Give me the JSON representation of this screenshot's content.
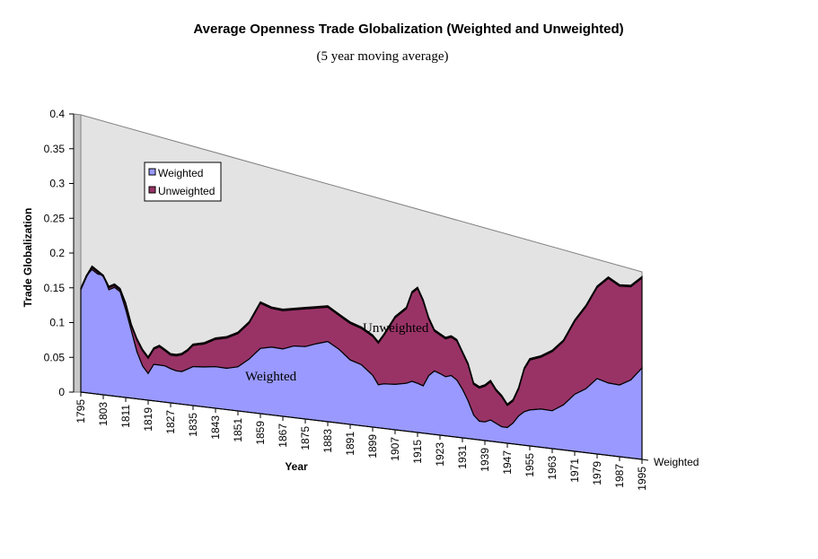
{
  "chart_data": {
    "type": "area",
    "title": "Average Openness Trade Globalization (Weighted and Unweighted)",
    "subtitle": "(5 year moving average)",
    "xlabel": "Year",
    "ylabel": "Trade Globalization",
    "ylim": [
      0,
      0.4
    ],
    "yticks": [
      "0",
      "0.05",
      "0.1",
      "0.15",
      "0.2",
      "0.25",
      "0.3",
      "0.35",
      "0.4"
    ],
    "xticks": [
      "1795",
      "1803",
      "1811",
      "1819",
      "1827",
      "1835",
      "1843",
      "1851",
      "1859",
      "1867",
      "1875",
      "1883",
      "1891",
      "1899",
      "1907",
      "1915",
      "1923",
      "1931",
      "1939",
      "1947",
      "1955",
      "1963",
      "1971",
      "1979",
      "1987",
      "1995"
    ],
    "depth_axis_label": "Weighted",
    "legend_position": "upper-left",
    "annotations": {
      "weighted": "Weighted",
      "unweighted": "Unweighted"
    },
    "colors": {
      "weighted": "#9999ff",
      "unweighted": "#993366",
      "wall": "#e3e3e3"
    },
    "x": [
      1795,
      1797,
      1799,
      1801,
      1803,
      1805,
      1807,
      1809,
      1811,
      1813,
      1815,
      1817,
      1819,
      1821,
      1823,
      1825,
      1827,
      1829,
      1831,
      1833,
      1835,
      1839,
      1843,
      1847,
      1851,
      1855,
      1859,
      1863,
      1867,
      1871,
      1875,
      1879,
      1883,
      1887,
      1891,
      1895,
      1899,
      1901,
      1903,
      1907,
      1911,
      1913,
      1915,
      1917,
      1919,
      1921,
      1923,
      1925,
      1927,
      1929,
      1931,
      1933,
      1935,
      1937,
      1939,
      1941,
      1943,
      1945,
      1947,
      1949,
      1951,
      1953,
      1955,
      1959,
      1963,
      1967,
      1971,
      1975,
      1979,
      1983,
      1987,
      1991,
      1995
    ],
    "series": [
      {
        "name": "Weighted",
        "values": [
          0.15,
          0.17,
          0.18,
          0.175,
          0.175,
          0.155,
          0.16,
          0.155,
          0.13,
          0.1,
          0.07,
          0.05,
          0.04,
          0.055,
          0.055,
          0.055,
          0.052,
          0.05,
          0.05,
          0.055,
          0.06,
          0.062,
          0.065,
          0.065,
          0.07,
          0.085,
          0.105,
          0.11,
          0.11,
          0.118,
          0.12,
          0.128,
          0.135,
          0.125,
          0.11,
          0.105,
          0.09,
          0.075,
          0.078,
          0.08,
          0.085,
          0.09,
          0.088,
          0.085,
          0.105,
          0.115,
          0.112,
          0.108,
          0.112,
          0.105,
          0.09,
          0.07,
          0.045,
          0.035,
          0.035,
          0.04,
          0.035,
          0.03,
          0.03,
          0.04,
          0.055,
          0.065,
          0.07,
          0.075,
          0.075,
          0.09,
          0.115,
          0.13,
          0.155,
          0.15,
          0.15,
          0.165,
          0.195
        ]
      },
      {
        "name": "Unweighted",
        "values": [
          0.15,
          0.17,
          0.185,
          0.18,
          0.175,
          0.16,
          0.165,
          0.16,
          0.14,
          0.11,
          0.09,
          0.075,
          0.065,
          0.08,
          0.085,
          0.08,
          0.075,
          0.075,
          0.078,
          0.085,
          0.095,
          0.1,
          0.11,
          0.115,
          0.125,
          0.145,
          0.18,
          0.175,
          0.175,
          0.18,
          0.185,
          0.19,
          0.195,
          0.185,
          0.175,
          0.17,
          0.16,
          0.15,
          0.165,
          0.2,
          0.22,
          0.25,
          0.26,
          0.24,
          0.21,
          0.19,
          0.185,
          0.18,
          0.185,
          0.18,
          0.16,
          0.14,
          0.105,
          0.1,
          0.105,
          0.115,
          0.1,
          0.09,
          0.075,
          0.085,
          0.11,
          0.15,
          0.17,
          0.18,
          0.195,
          0.22,
          0.265,
          0.3,
          0.345,
          0.37,
          0.36,
          0.365,
          0.39
        ]
      }
    ]
  }
}
